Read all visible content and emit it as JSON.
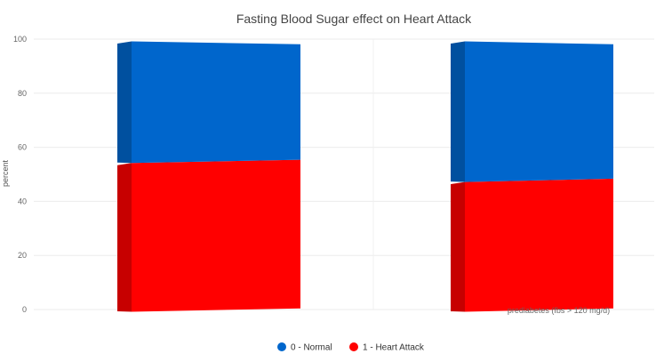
{
  "chart_data": {
    "type": "bar",
    "stacked": true,
    "three_d": true,
    "title": "Fasting Blood Sugar effect on Heart Attack",
    "ylabel": "percent",
    "xlabel": "",
    "ylim": [
      0,
      100
    ],
    "yticks": [
      0,
      20,
      40,
      60,
      80,
      100
    ],
    "grid": true,
    "legend_position": "bottom",
    "categories": [
      "",
      "prediabetes (fbs > 120 mg/d)"
    ],
    "series": [
      {
        "name": "1 - Heart Attack",
        "color": "#ff0000",
        "values": [
          55,
          48
        ]
      },
      {
        "name": "0 - Normal",
        "color": "#0066cc",
        "values": [
          45,
          52
        ]
      }
    ]
  }
}
